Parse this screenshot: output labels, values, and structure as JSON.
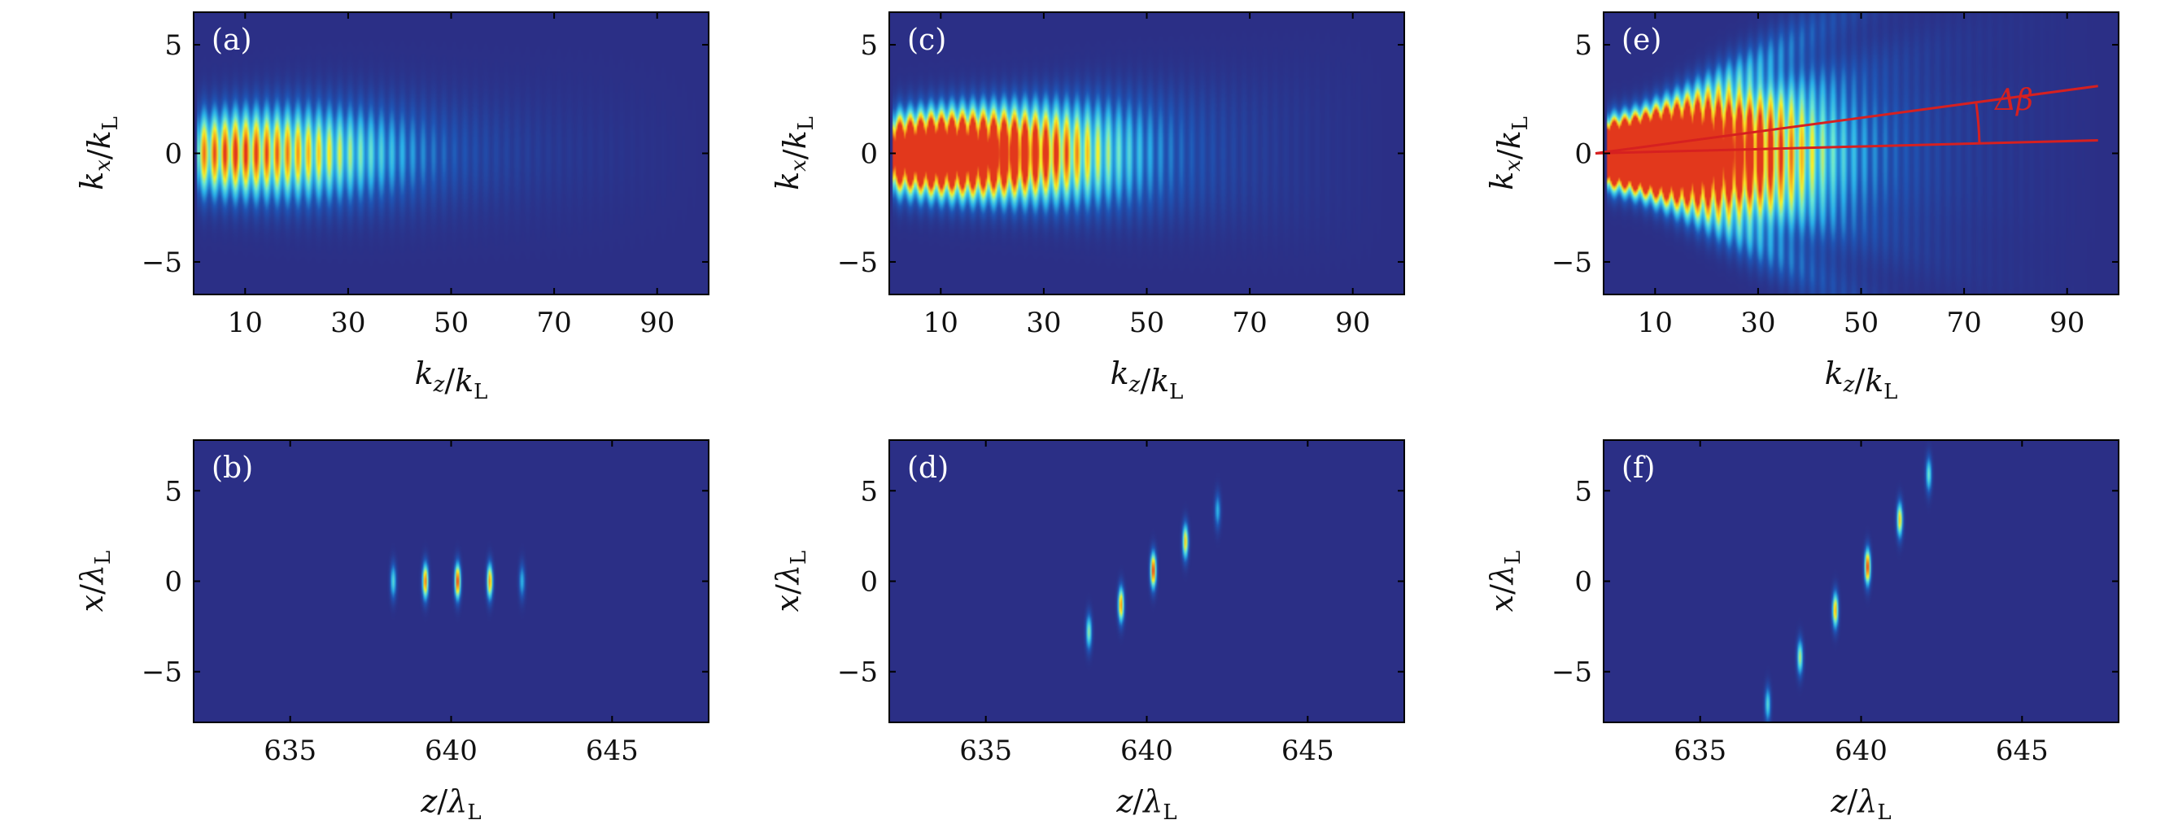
{
  "colors": {
    "background": "#2b2f86",
    "colormap": [
      "#2b2f86",
      "#1f55b5",
      "#2ab0e8",
      "#6ee8d0",
      "#f4f02c",
      "#f7a21b",
      "#e2381c"
    ],
    "annotation": "#d62020"
  },
  "chart_data": [
    {
      "panel": "(a)",
      "type": "heatmap",
      "description_kind": "momentum-spectrum",
      "xlabel": "k_z/k_L",
      "ylabel": "k_x/k_L",
      "xlim": [
        0,
        100
      ],
      "ylim": [
        -6.5,
        6.5
      ],
      "xticks": [
        10,
        30,
        50,
        70,
        90
      ],
      "yticks": [
        5,
        0,
        -5
      ],
      "xtick_labels": [
        "10",
        "30",
        "50",
        "70",
        "90"
      ],
      "ytick_labels": [
        "5",
        "0",
        "−5"
      ],
      "branches": [
        {
          "angle_deg": 0,
          "width": 1.8,
          "amp": 1.0
        }
      ],
      "peak_kz": 8,
      "max_kz": 100
    },
    {
      "panel": "(b)",
      "type": "heatmap",
      "description_kind": "attosecond-bunches",
      "xlabel": "z/λ_L",
      "ylabel": "x/λ_L",
      "xlim": [
        632,
        648
      ],
      "ylim": [
        -7.8,
        7.8
      ],
      "xticks": [
        635,
        640,
        645
      ],
      "yticks": [
        5,
        0,
        -5
      ],
      "xtick_labels": [
        "635",
        "640",
        "645"
      ],
      "ytick_labels": [
        "5",
        "0",
        "−5"
      ],
      "blobs": [
        {
          "z": 638.2,
          "x": 0.0,
          "amp": 0.45
        },
        {
          "z": 639.2,
          "x": 0.0,
          "amp": 0.9
        },
        {
          "z": 640.2,
          "x": 0.0,
          "amp": 1.0
        },
        {
          "z": 641.2,
          "x": 0.0,
          "amp": 0.85
        },
        {
          "z": 642.2,
          "x": 0.0,
          "amp": 0.35
        }
      ]
    },
    {
      "panel": "(c)",
      "type": "heatmap",
      "description_kind": "momentum-spectrum",
      "xlabel": "k_z/k_L",
      "ylabel": "k_x/k_L",
      "xlim": [
        0,
        100
      ],
      "ylim": [
        -6.5,
        6.5
      ],
      "xticks": [
        10,
        30,
        50,
        70,
        90
      ],
      "yticks": [
        5,
        0,
        -5
      ],
      "xtick_labels": [
        "10",
        "30",
        "50",
        "70",
        "90"
      ],
      "ytick_labels": [
        "5",
        "0",
        "−5"
      ],
      "branches": [
        {
          "angle_deg": 0,
          "width": 1.6,
          "amp": 1.0
        },
        {
          "angle_deg": 1.6,
          "width": 1.4,
          "amp": 0.75
        },
        {
          "angle_deg": -1.6,
          "width": 1.4,
          "amp": 0.75
        }
      ],
      "peak_kz": 8,
      "max_kz": 97
    },
    {
      "panel": "(d)",
      "type": "heatmap",
      "description_kind": "attosecond-bunches",
      "xlabel": "z/λ_L",
      "ylabel": "x/λ_L",
      "xlim": [
        632,
        648
      ],
      "ylim": [
        -7.8,
        7.8
      ],
      "xticks": [
        635,
        640,
        645
      ],
      "yticks": [
        5,
        0,
        -5
      ],
      "xtick_labels": [
        "635",
        "640",
        "645"
      ],
      "ytick_labels": [
        "5",
        "0",
        "−5"
      ],
      "blobs": [
        {
          "z": 638.2,
          "x": -2.8,
          "amp": 0.55
        },
        {
          "z": 639.2,
          "x": -1.3,
          "amp": 0.85
        },
        {
          "z": 640.2,
          "x": 0.6,
          "amp": 1.0
        },
        {
          "z": 641.2,
          "x": 2.2,
          "amp": 0.75
        },
        {
          "z": 642.2,
          "x": 3.9,
          "amp": 0.35
        }
      ]
    },
    {
      "panel": "(e)",
      "type": "heatmap",
      "description_kind": "momentum-spectrum",
      "xlabel": "k_z/k_L",
      "ylabel": "k_x/k_L",
      "xlim": [
        0,
        100
      ],
      "ylim": [
        -6.5,
        6.5
      ],
      "xticks": [
        10,
        30,
        50,
        70,
        90
      ],
      "yticks": [
        5,
        0,
        -5
      ],
      "xtick_labels": [
        "10",
        "30",
        "50",
        "70",
        "90"
      ],
      "ytick_labels": [
        "5",
        "0",
        "−5"
      ],
      "branches": [
        {
          "angle_deg": 0,
          "width": 1.3,
          "amp": 1.0
        },
        {
          "angle_deg": 1.8,
          "width": 1.2,
          "amp": 0.85
        },
        {
          "angle_deg": -1.8,
          "width": 1.2,
          "amp": 0.85
        },
        {
          "angle_deg": 3.6,
          "width": 1.1,
          "amp": 0.7
        },
        {
          "angle_deg": -3.6,
          "width": 1.1,
          "amp": 0.7
        },
        {
          "angle_deg": 5.4,
          "width": 1.0,
          "amp": 0.5
        },
        {
          "angle_deg": -5.4,
          "width": 1.0,
          "amp": 0.5
        }
      ],
      "peak_kz": 10,
      "max_kz": 97,
      "annotation": {
        "label": "Δβ",
        "line1": {
          "x0": 0,
          "y0": 0,
          "x1": 96,
          "y1": 3.1
        },
        "line2": {
          "x0": 0,
          "y0": 0,
          "x1": 96,
          "y1": 0.6
        }
      }
    },
    {
      "panel": "(f)",
      "type": "heatmap",
      "description_kind": "attosecond-bunches",
      "xlabel": "z/λ_L",
      "ylabel": "x/λ_L",
      "xlim": [
        632,
        648
      ],
      "ylim": [
        -7.8,
        7.8
      ],
      "xticks": [
        635,
        640,
        645
      ],
      "yticks": [
        5,
        0,
        -5
      ],
      "xtick_labels": [
        "635",
        "640",
        "645"
      ],
      "ytick_labels": [
        "5",
        "0",
        "−5"
      ],
      "blobs": [
        {
          "z": 637.1,
          "x": -6.8,
          "amp": 0.45
        },
        {
          "z": 638.1,
          "x": -4.2,
          "amp": 0.6
        },
        {
          "z": 639.2,
          "x": -1.6,
          "amp": 0.8
        },
        {
          "z": 640.2,
          "x": 0.8,
          "amp": 1.0
        },
        {
          "z": 641.2,
          "x": 3.4,
          "amp": 0.75
        },
        {
          "z": 642.1,
          "x": 5.9,
          "amp": 0.5
        }
      ]
    }
  ]
}
